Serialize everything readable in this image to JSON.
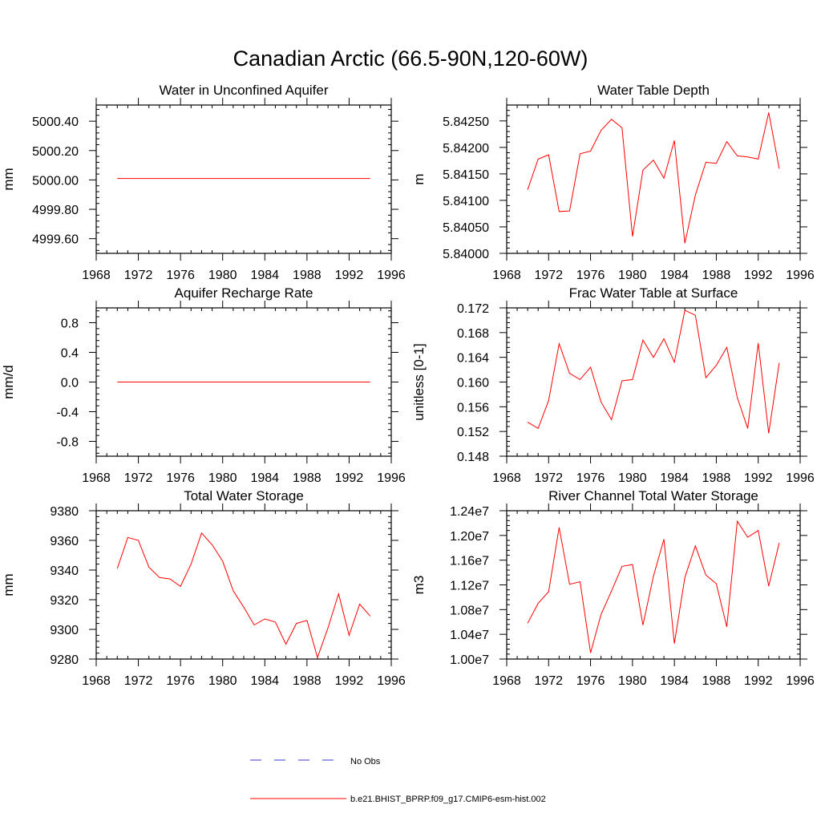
{
  "main_title": "Canadian Arctic (66.5-90N,120-60W)",
  "legend": [
    {
      "label": "No Obs",
      "color": "#3a3ad6",
      "style": "dashed"
    },
    {
      "label": "b.e21.BHIST_BPRP.f09_g17.CMIP6-esm-hist.002",
      "color": "#ff0000",
      "style": "solid"
    }
  ],
  "colors": {
    "model": "#ff0000",
    "obs": "#3a3ad6",
    "axis": "#000000"
  },
  "chart_data": [
    {
      "type": "line",
      "title": "Water in Unconfined Aquifer",
      "ylabel": "mm",
      "xlim": [
        1968,
        1996
      ],
      "ylim": [
        4999.5,
        5000.51
      ],
      "xticks": [
        1968,
        1972,
        1976,
        1980,
        1984,
        1988,
        1992,
        1996
      ],
      "yticks": [
        4999.6,
        4999.8,
        5000.0,
        5000.2,
        5000.4
      ],
      "ytick_labels": [
        "4999.60",
        "4999.80",
        "5000.00",
        "5000.20",
        "5000.40"
      ],
      "x": [
        1970,
        1971,
        1972,
        1973,
        1974,
        1975,
        1976,
        1977,
        1978,
        1979,
        1980,
        1981,
        1982,
        1983,
        1984,
        1985,
        1986,
        1987,
        1988,
        1989,
        1990,
        1991,
        1992,
        1993,
        1994
      ],
      "series": [
        {
          "name": "b.e21.BHIST_BPRP.f09_g17.CMIP6-esm-hist.002",
          "values": [
            5000.01,
            5000.01,
            5000.01,
            5000.01,
            5000.01,
            5000.01,
            5000.01,
            5000.01,
            5000.01,
            5000.01,
            5000.01,
            5000.01,
            5000.01,
            5000.01,
            5000.01,
            5000.01,
            5000.01,
            5000.01,
            5000.01,
            5000.01,
            5000.01,
            5000.01,
            5000.01,
            5000.01,
            5000.01
          ]
        }
      ]
    },
    {
      "type": "line",
      "title": "Water Table Depth",
      "ylabel": "m",
      "xlim": [
        1968,
        1996
      ],
      "ylim": [
        5.84,
        5.8428
      ],
      "xticks": [
        1968,
        1972,
        1976,
        1980,
        1984,
        1988,
        1992,
        1996
      ],
      "yticks": [
        5.84,
        5.8405,
        5.841,
        5.8415,
        5.842,
        5.8425
      ],
      "ytick_labels": [
        "5.84000",
        "5.84050",
        "5.84100",
        "5.84150",
        "5.84200",
        "5.84250"
      ],
      "x": [
        1970,
        1971,
        1972,
        1973,
        1974,
        1975,
        1976,
        1977,
        1978,
        1979,
        1980,
        1981,
        1982,
        1983,
        1984,
        1985,
        1986,
        1987,
        1988,
        1989,
        1990,
        1991,
        1992,
        1993,
        1994
      ],
      "series": [
        {
          "name": "b.e21.BHIST_BPRP.f09_g17.CMIP6-esm-hist.002",
          "values": [
            5.8412,
            5.84178,
            5.84186,
            5.84079,
            5.8408,
            5.84188,
            5.84193,
            5.84232,
            5.84253,
            5.84237,
            5.84032,
            5.84157,
            5.84176,
            5.84142,
            5.84213,
            5.84019,
            5.8411,
            5.84172,
            5.8417,
            5.84211,
            5.84184,
            5.84182,
            5.84178,
            5.84266,
            5.8416
          ]
        }
      ]
    },
    {
      "type": "line",
      "title": "Aquifer Recharge Rate",
      "ylabel": "mm/d",
      "xlim": [
        1968,
        1996
      ],
      "ylim": [
        -1.0,
        1.0
      ],
      "xticks": [
        1968,
        1972,
        1976,
        1980,
        1984,
        1988,
        1992,
        1996
      ],
      "yticks": [
        -0.8,
        -0.4,
        0.0,
        0.4,
        0.8
      ],
      "ytick_labels": [
        "-0.8",
        "-0.4",
        "0.0",
        "0.4",
        "0.8"
      ],
      "x": [
        1970,
        1971,
        1972,
        1973,
        1974,
        1975,
        1976,
        1977,
        1978,
        1979,
        1980,
        1981,
        1982,
        1983,
        1984,
        1985,
        1986,
        1987,
        1988,
        1989,
        1990,
        1991,
        1992,
        1993,
        1994
      ],
      "series": [
        {
          "name": "b.e21.BHIST_BPRP.f09_g17.CMIP6-esm-hist.002",
          "values": [
            0,
            0,
            0,
            0,
            0,
            0,
            0,
            0,
            0,
            0,
            0,
            0,
            0,
            0,
            0,
            0,
            0,
            0,
            0,
            0,
            0,
            0,
            0,
            0,
            0
          ]
        }
      ]
    },
    {
      "type": "line",
      "title": "Frac Water Table at Surface",
      "ylabel": "unitless [0-1]",
      "xlim": [
        1968,
        1996
      ],
      "ylim": [
        0.148,
        0.172
      ],
      "xticks": [
        1968,
        1972,
        1976,
        1980,
        1984,
        1988,
        1992,
        1996
      ],
      "yticks": [
        0.148,
        0.152,
        0.156,
        0.16,
        0.164,
        0.168,
        0.172
      ],
      "ytick_labels": [
        "0.148",
        "0.152",
        "0.156",
        "0.160",
        "0.164",
        "0.168",
        "0.172"
      ],
      "x": [
        1970,
        1971,
        1972,
        1973,
        1974,
        1975,
        1976,
        1977,
        1978,
        1979,
        1980,
        1981,
        1982,
        1983,
        1984,
        1985,
        1986,
        1987,
        1988,
        1989,
        1990,
        1991,
        1992,
        1993,
        1994
      ],
      "series": [
        {
          "name": "b.e21.BHIST_BPRP.f09_g17.CMIP6-esm-hist.002",
          "values": [
            0.1535,
            0.1525,
            0.157,
            0.1662,
            0.1614,
            0.1604,
            0.1624,
            0.1568,
            0.1539,
            0.1602,
            0.1604,
            0.1668,
            0.164,
            0.167,
            0.1632,
            0.1716,
            0.1708,
            0.1607,
            0.1627,
            0.1656,
            0.1575,
            0.1525,
            0.1663,
            0.1517,
            0.1631
          ]
        }
      ]
    },
    {
      "type": "line",
      "title": "Total Water Storage",
      "ylabel": "mm",
      "xlim": [
        1968,
        1996
      ],
      "ylim": [
        9280,
        9380
      ],
      "xticks": [
        1968,
        1972,
        1976,
        1980,
        1984,
        1988,
        1992,
        1996
      ],
      "yticks": [
        9280,
        9300,
        9320,
        9340,
        9360,
        9380
      ],
      "ytick_labels": [
        "9280",
        "9300",
        "9320",
        "9340",
        "9360",
        "9380"
      ],
      "x": [
        1970,
        1971,
        1972,
        1973,
        1974,
        1975,
        1976,
        1977,
        1978,
        1979,
        1980,
        1981,
        1982,
        1983,
        1984,
        1985,
        1986,
        1987,
        1988,
        1989,
        1990,
        1991,
        1992,
        1993,
        1994
      ],
      "series": [
        {
          "name": "b.e21.BHIST_BPRP.f09_g17.CMIP6-esm-hist.002",
          "values": [
            9341,
            9362,
            9360,
            9342,
            9335,
            9334,
            9329,
            9344,
            9365,
            9357,
            9346,
            9326,
            9315,
            9303,
            9307,
            9305,
            9290,
            9304,
            9306,
            9281,
            9301,
            9324,
            9296,
            9317,
            9309
          ]
        }
      ]
    },
    {
      "type": "line",
      "title": "River Channel Total Water Storage",
      "ylabel": "m3",
      "xlim": [
        1968,
        1996
      ],
      "ylim": [
        10000000,
        12400000
      ],
      "xticks": [
        1968,
        1972,
        1976,
        1980,
        1984,
        1988,
        1992,
        1996
      ],
      "yticks": [
        10000000,
        10400000,
        10800000,
        11200000,
        11600000,
        12000000,
        12400000
      ],
      "ytick_labels": [
        "1.00e7",
        "1.04e7",
        "1.08e7",
        "1.12e7",
        "1.16e7",
        "1.20e7",
        "1.24e7"
      ],
      "x": [
        1970,
        1971,
        1972,
        1973,
        1974,
        1975,
        1976,
        1977,
        1978,
        1979,
        1980,
        1981,
        1982,
        1983,
        1984,
        1985,
        1986,
        1987,
        1988,
        1989,
        1990,
        1991,
        1992,
        1993,
        1994
      ],
      "series": [
        {
          "name": "b.e21.BHIST_BPRP.f09_g17.CMIP6-esm-hist.002",
          "values": [
            10580000,
            10900000,
            11090000,
            12130000,
            11210000,
            11250000,
            10100000,
            10720000,
            11100000,
            11500000,
            11530000,
            10550000,
            11340000,
            11940000,
            10250000,
            11320000,
            11830000,
            11360000,
            11220000,
            10520000,
            12230000,
            11970000,
            12080000,
            11180000,
            11880000
          ]
        }
      ]
    }
  ]
}
